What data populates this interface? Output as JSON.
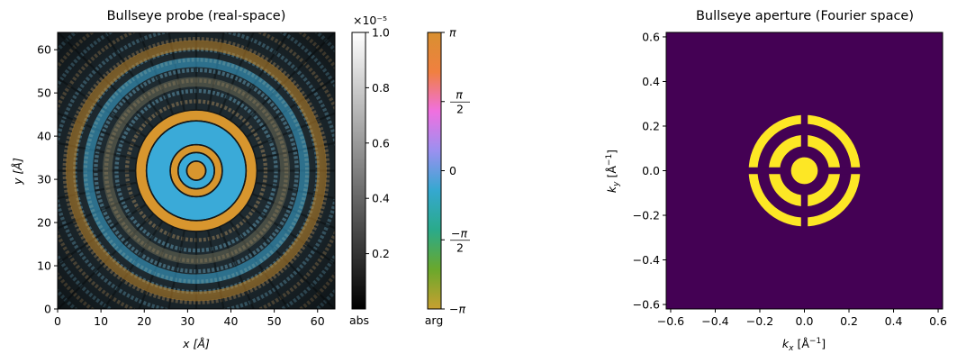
{
  "chart_data": [
    {
      "type": "heatmap",
      "title": "Bullseye probe (real-space)",
      "xlabel": "x [Å]",
      "ylabel": "y [Å]",
      "xlim": [
        0,
        64
      ],
      "ylim": [
        0,
        64
      ],
      "xticks": [
        "0",
        "10",
        "20",
        "30",
        "40",
        "50",
        "60"
      ],
      "yticks": [
        "0",
        "10",
        "20",
        "30",
        "40",
        "50",
        "60"
      ],
      "rings": [
        {
          "r_outer": 2.2,
          "phase": "orange"
        },
        {
          "r_outer": 4.2,
          "phase": "blue"
        },
        {
          "r_outer": 6.0,
          "phase": "orange"
        },
        {
          "r_outer": 11.5,
          "phase": "blue"
        },
        {
          "r_outer": 14.0,
          "phase": "orange"
        },
        {
          "r_outer": 20.5,
          "phase": "mixed"
        },
        {
          "r_outer": 25.0,
          "phase": "blue"
        },
        {
          "r_outer": 29.0,
          "phase": "orange"
        }
      ],
      "colorbar_abs": {
        "label": "abs",
        "multiplier": "×10⁻⁵",
        "range": [
          0,
          1.0
        ],
        "ticks": [
          "0.2",
          "0.4",
          "0.6",
          "0.8",
          "1.0"
        ]
      },
      "colorbar_arg": {
        "label": "arg",
        "range": [
          -3.14159,
          3.14159
        ],
        "ticks": [
          {
            "value": -3.14159,
            "label": "−π"
          },
          {
            "value": -1.5708,
            "label": "−π/2"
          },
          {
            "value": 0,
            "label": "0"
          },
          {
            "value": 1.5708,
            "label": "π/2"
          },
          {
            "value": 3.14159,
            "label": "π"
          }
        ],
        "colors": [
          "#c8a030",
          "#6aa82c",
          "#2aaa8a",
          "#35a8d0",
          "#9a90f0",
          "#f070e0",
          "#f08040",
          "#d89030"
        ]
      }
    },
    {
      "type": "heatmap",
      "title": "Bullseye aperture (Fourier space)",
      "xlabel": "kx [Å⁻¹]",
      "ylabel": "ky [Å⁻¹]",
      "xlim": [
        -0.62,
        0.62
      ],
      "ylim": [
        -0.62,
        0.62
      ],
      "xticks": [
        "−0.6",
        "−0.4",
        "−0.2",
        "0.0",
        "0.2",
        "0.4",
        "0.6"
      ],
      "yticks": [
        "−0.6",
        "−0.4",
        "−0.2",
        "0.0",
        "0.2",
        "0.4",
        "0.6"
      ],
      "background_color": "#440154",
      "foreground_color": "#fde725",
      "aperture": {
        "center_radius": 0.06,
        "rings": [
          [
            0.11,
            0.16
          ],
          [
            0.21,
            0.25
          ]
        ],
        "spoke_count": 4,
        "spoke_width": 0.03
      }
    }
  ],
  "colors": {
    "aperture_background": "#440154",
    "aperture_foreground": "#fde725",
    "probe_blue": "#3aaad8",
    "probe_orange": "#d8962e"
  }
}
